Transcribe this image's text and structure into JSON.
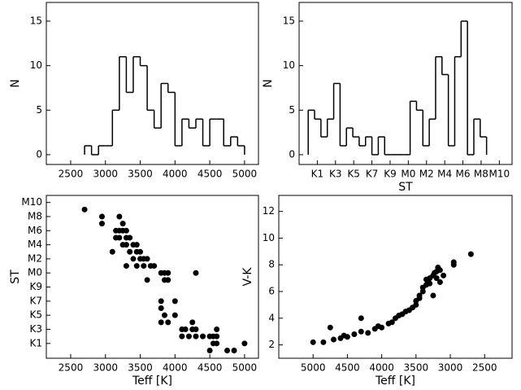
{
  "chart_data": [
    {
      "type": "histogram",
      "ylabel": "N",
      "bins": [
        2700,
        2800,
        2900,
        3000,
        3100,
        3200,
        3300,
        3400,
        3500,
        3600,
        3700,
        3800,
        3900,
        4000,
        4100,
        4200,
        4300,
        4400,
        4500,
        4600,
        4700,
        4800,
        4900,
        5000
      ],
      "values": [
        1,
        0,
        1,
        1,
        5,
        11,
        7,
        11,
        10,
        5,
        3,
        8,
        7,
        1,
        4,
        3,
        4,
        1,
        4,
        4,
        1,
        2,
        1
      ],
      "xlim": [
        2150,
        5200
      ],
      "xticks": [
        2500,
        3000,
        3500,
        4000,
        4500,
        5000
      ],
      "ylim": [
        -1.1,
        17.1
      ],
      "yticks": [
        0,
        5,
        10,
        15
      ],
      "color": "#000000"
    },
    {
      "type": "histogram",
      "xlabel": "ST",
      "ylabel": "N",
      "bins": [
        0,
        0.7,
        1.4,
        2.1,
        2.8,
        3.5,
        4.2,
        4.9,
        5.6,
        6.3,
        7,
        7.7,
        8.4,
        9.1,
        9.8,
        10.5,
        11.2,
        11.9,
        12.6,
        13.3,
        14,
        14.7,
        15.4,
        16.1,
        16.8,
        17.5,
        18.2,
        18.9,
        19.6
      ],
      "values": [
        5,
        4,
        2,
        4,
        8,
        1,
        3,
        2,
        1,
        2,
        0,
        2,
        0,
        0,
        0,
        0,
        6,
        5,
        1,
        4,
        11,
        9,
        1,
        11,
        15,
        0,
        4,
        2
      ],
      "xlim": [
        -1,
        22.4
      ],
      "xticks": [
        {
          "value": 1,
          "label": "K1"
        },
        {
          "value": 3,
          "label": "K3"
        },
        {
          "value": 5,
          "label": "K5"
        },
        {
          "value": 7,
          "label": "K7"
        },
        {
          "value": 9,
          "label": "K9"
        },
        {
          "value": 11,
          "label": "M0"
        },
        {
          "value": 13,
          "label": "M2"
        },
        {
          "value": 15,
          "label": "M4"
        },
        {
          "value": 17,
          "label": "M6"
        },
        {
          "value": 19,
          "label": "M8"
        },
        {
          "value": 21,
          "label": "M10"
        }
      ],
      "ylim": [
        -1.1,
        17.1
      ],
      "yticks": [
        0,
        5,
        10,
        15
      ],
      "color": "#000000"
    },
    {
      "type": "scatter",
      "xlabel": "Teff [K]",
      "ylabel": "ST",
      "x": [
        2700,
        2950,
        2950,
        3150,
        3150,
        3100,
        3200,
        3250,
        3200,
        3250,
        3300,
        3200,
        3300,
        3350,
        3250,
        3300,
        3400,
        3450,
        3350,
        3450,
        3500,
        3400,
        3500,
        3550,
        3600,
        3450,
        3550,
        3650,
        3300,
        3700,
        3800,
        3850,
        3900,
        3850,
        3600,
        3900,
        4300,
        3800,
        3800,
        3850,
        4000,
        4000,
        3800,
        3900,
        4100,
        4150,
        4250,
        4250,
        4300,
        4200,
        4300,
        4100,
        4400,
        4500,
        4550,
        4600,
        4550,
        4600,
        4500,
        4750,
        4850,
        5000,
        4600
      ],
      "values": [
        20,
        19,
        18,
        17,
        16,
        14,
        19,
        18,
        17,
        17,
        17,
        16,
        16,
        16,
        15,
        15,
        15,
        15,
        14,
        14,
        14,
        13,
        13,
        13,
        13,
        12,
        12,
        12,
        12,
        12,
        11,
        11,
        11,
        10,
        10,
        10,
        11,
        7,
        6,
        5,
        7,
        5,
        4,
        4,
        3,
        3,
        4,
        3,
        3,
        2,
        2,
        2,
        2,
        2,
        2,
        3,
        1,
        1,
        0,
        0,
        0,
        1,
        2
      ],
      "xlim": [
        2150,
        5200
      ],
      "xticks": [
        2500,
        3000,
        3500,
        4000,
        4500,
        5000
      ],
      "ylim": [
        -1.1,
        22
      ],
      "yticks": [
        {
          "value": 1,
          "label": "K1"
        },
        {
          "value": 3,
          "label": "K3"
        },
        {
          "value": 5,
          "label": "K5"
        },
        {
          "value": 7,
          "label": "K7"
        },
        {
          "value": 9,
          "label": "K9"
        },
        {
          "value": 11,
          "label": "M0"
        },
        {
          "value": 13,
          "label": "M2"
        },
        {
          "value": 15,
          "label": "M4"
        },
        {
          "value": 17,
          "label": "M6"
        },
        {
          "value": 19,
          "label": "M8"
        },
        {
          "value": 21,
          "label": "M10"
        }
      ],
      "color": "#000000"
    },
    {
      "type": "scatter",
      "xlabel": "Teff [K]",
      "ylabel": "V-K",
      "x": [
        5000,
        4850,
        4750,
        4700,
        4600,
        4550,
        4500,
        4400,
        4300,
        4300,
        4200,
        4100,
        4050,
        4000,
        3900,
        3850,
        3800,
        3750,
        3700,
        3650,
        3600,
        3550,
        3500,
        3500,
        3450,
        3450,
        3400,
        3400,
        3350,
        3350,
        3300,
        3300,
        3250,
        3250,
        3200,
        3200,
        3150,
        3150,
        3180,
        3230,
        2950,
        2950,
        2700,
        3100
      ],
      "values": [
        2.2,
        2.2,
        3.3,
        2.4,
        2.5,
        2.7,
        2.6,
        2.8,
        4,
        3,
        2.9,
        3.2,
        3.4,
        3.3,
        3.6,
        3.7,
        4,
        4.2,
        4.3,
        4.5,
        4.6,
        4.8,
        5,
        5.3,
        5.5,
        5.7,
        6,
        6.3,
        6.5,
        6.9,
        6.6,
        7,
        7.2,
        5.7,
        7.5,
        7,
        7.6,
        6.7,
        7.8,
        7.4,
        8.2,
        8,
        8.8,
        7.2
      ],
      "xlim": [
        5500,
        2100
      ],
      "xticks": [
        5000,
        4500,
        4000,
        3500,
        3000,
        2500
      ],
      "ylim": [
        1,
        13.2
      ],
      "yticks": [
        2,
        4,
        6,
        8,
        10,
        12
      ],
      "color": "#000000"
    }
  ]
}
